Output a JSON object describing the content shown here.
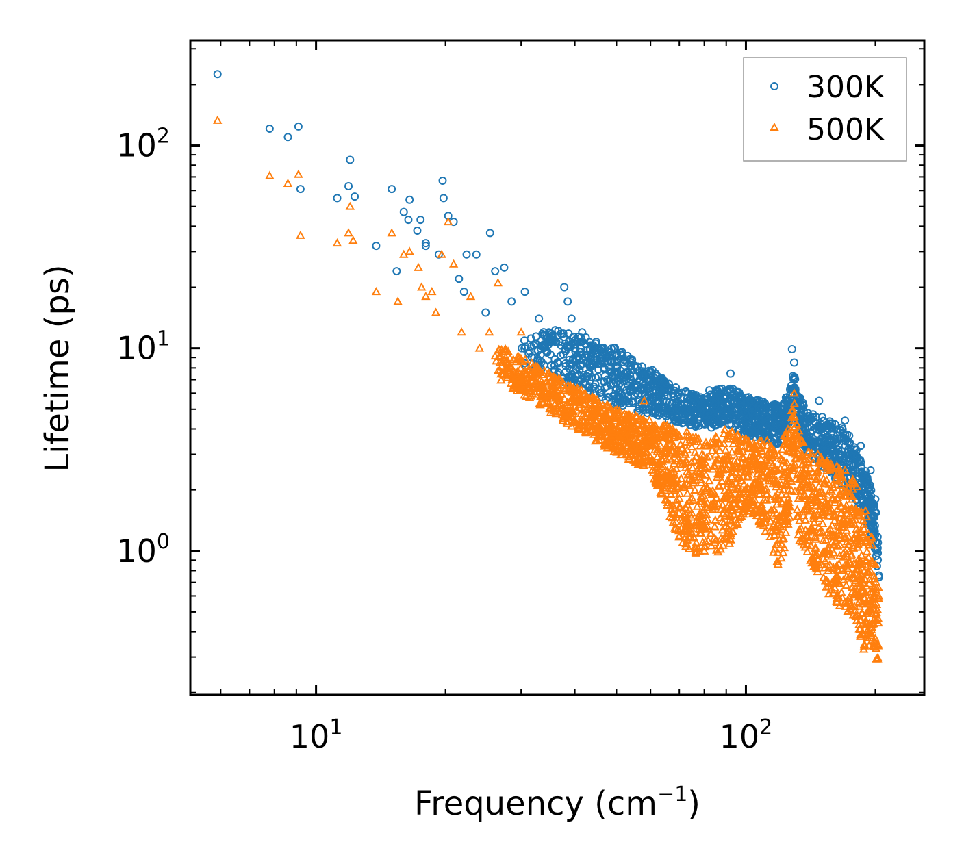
{
  "chart_data": {
    "type": "scatter",
    "title": "",
    "xlabel": "Frequency (cm",
    "xlabel_sup": "−1",
    "xlabel_tail": ")",
    "ylabel": "Lifetime (ps)",
    "xscale": "log",
    "yscale": "log",
    "xlim": [
      5.1,
      260
    ],
    "ylim": [
      0.195,
      330
    ],
    "x_ticks": [
      {
        "value": 10,
        "base": "10",
        "exp": "1"
      },
      {
        "value": 100,
        "base": "10",
        "exp": "2"
      }
    ],
    "y_ticks": [
      {
        "value": 1,
        "base": "10",
        "exp": "0"
      },
      {
        "value": 10,
        "base": "10",
        "exp": "1"
      },
      {
        "value": 100,
        "base": "10",
        "exp": "2"
      }
    ],
    "legend_position": "top-right",
    "series": [
      {
        "name": "300K",
        "color": "#1f77b4",
        "marker": "circle",
        "x": [
          5.9,
          7.8,
          8.6,
          9.1,
          9.2,
          11.2,
          11.9,
          12.0,
          12.3,
          13.8,
          15.0,
          15.4,
          16.0,
          16.4,
          16.5,
          17.2,
          17.5,
          18.0,
          18.0,
          19.3,
          19.7,
          19.8,
          20.3,
          20.9,
          21.5,
          22.1,
          22.4,
          23.6,
          24.8,
          25.4,
          26.1,
          27.4,
          28.5,
          30.6,
          33.0,
          34.8,
          37.8,
          38.5,
          39.3,
          41.6,
          46.3,
          51.1,
          54.0,
          60.6,
          64.5,
          73.5,
          82.2,
          92.1,
          103.0,
          117.0,
          128.0,
          129.5,
          148.0,
          170.0,
          185.0,
          195.0,
          200.0
        ],
        "values": [
          225,
          121,
          110,
          124,
          61,
          55,
          63,
          85,
          56,
          32,
          61,
          24,
          47,
          43,
          54,
          38,
          43,
          33,
          32,
          29,
          67,
          55,
          45,
          42,
          22,
          19,
          29,
          29,
          15,
          37,
          24,
          25,
          17,
          19,
          14,
          12,
          20,
          17,
          14,
          12,
          10.0,
          9.5,
          8.5,
          7.8,
          6.8,
          6.0,
          6.2,
          7.5,
          5.5,
          5.2,
          9.9,
          8.5,
          5.5,
          4.4,
          3.3,
          2.5,
          1.8
        ]
      },
      {
        "name": "500K",
        "color": "#ff7f0e",
        "marker": "triangle",
        "x": [
          5.9,
          7.8,
          8.6,
          9.1,
          9.2,
          11.2,
          11.9,
          12.0,
          12.2,
          13.8,
          15.0,
          15.5,
          16.0,
          16.5,
          17.3,
          17.6,
          18.0,
          18.6,
          19.0,
          19.6,
          20.3,
          20.9,
          21.8,
          22.9,
          24.0,
          25.3,
          26.5,
          28.0,
          30.0,
          32.5,
          35.0,
          38.0,
          41.6,
          45.0,
          51.0,
          58.0,
          66.0,
          75.0,
          85.0,
          95.0,
          112.0,
          127.0,
          129.5,
          147.0,
          170.0,
          190.0,
          200.0
        ],
        "values": [
          133,
          71,
          65,
          72,
          36,
          33,
          37,
          50,
          34,
          19,
          37,
          17,
          29,
          30,
          25,
          20,
          18,
          19,
          15,
          29,
          42,
          26,
          12,
          18,
          10.0,
          12,
          21,
          8.0,
          12,
          7.5,
          6.0,
          5.0,
          4.2,
          3.5,
          4.1,
          5.5,
          3.6,
          3.5,
          3.4,
          3.6,
          3.5,
          3.3,
          6.0,
          3.0,
          2.5,
          1.1,
          0.6
        ]
      }
    ],
    "cloud_300K": {
      "x": [
        30,
        40,
        50,
        60,
        70,
        80,
        90,
        100,
        110,
        120,
        126,
        129,
        132,
        140,
        150,
        160,
        170,
        180,
        190,
        196,
        200,
        202,
        204
      ],
      "y_high": [
        13,
        12,
        10,
        7.8,
        6.3,
        5.8,
        6.6,
        5.8,
        5.5,
        5.2,
        6.0,
        8.0,
        6.0,
        4.8,
        4.6,
        4.3,
        4.0,
        3.3,
        2.5,
        2.0,
        1.7,
        1.4,
        1.0
      ],
      "y_low": [
        8.0,
        6.5,
        5.2,
        4.6,
        4.3,
        3.9,
        4.3,
        3.7,
        3.6,
        3.3,
        4.2,
        5.5,
        3.8,
        3.0,
        2.6,
        2.3,
        2.0,
        1.7,
        1.4,
        1.2,
        1.0,
        0.8,
        0.7
      ]
    },
    "cloud_500K": {
      "x": [
        26,
        30,
        40,
        50,
        60,
        70,
        80,
        90,
        100,
        110,
        120,
        126,
        129,
        132,
        140,
        150,
        160,
        170,
        180,
        190,
        196,
        200,
        202,
        204
      ],
      "y_high": [
        11,
        9.0,
        6.5,
        5.0,
        4.4,
        4.0,
        3.6,
        4.0,
        3.6,
        3.5,
        3.4,
        4.2,
        6.0,
        4.0,
        3.2,
        2.9,
        2.7,
        2.5,
        2.2,
        1.6,
        1.2,
        1.0,
        0.9,
        0.6
      ],
      "y_low": [
        7.0,
        6.0,
        4.0,
        3.0,
        2.5,
        1.1,
        0.9,
        1.0,
        1.6,
        1.3,
        0.8,
        1.2,
        2.5,
        1.0,
        0.9,
        0.7,
        0.55,
        0.5,
        0.45,
        0.3,
        0.35,
        0.28,
        0.27,
        0.3
      ]
    }
  }
}
